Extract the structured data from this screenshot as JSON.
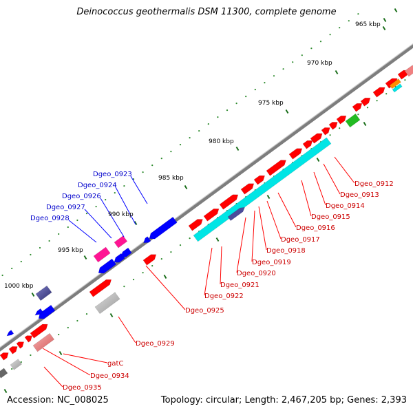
{
  "title": "Deinococcus geothermalis DSM 11300, complete genome",
  "footer": {
    "accession": "Accession: NC_008025",
    "topology": "Topology: circular; Length: 2,467,205 bp; Genes: 2,393"
  },
  "colors": {
    "backbone": "#808080",
    "tick_dots": "#2e8b2e",
    "forward_gene": "#ff0000",
    "forward_label": "#cc0000",
    "reverse_gene": "#0000ff",
    "reverse_label": "#0000cc",
    "rrna_cyan": "#00e5e5",
    "magenta": "#ff1493",
    "slate": "#4b4b9b",
    "green": "#22bb22",
    "orange": "#ff8c00",
    "grey": "#b0b0b0",
    "pink": "#f08080"
  },
  "scale_labels": [
    "965 kbp",
    "970 kbp",
    "975 kbp",
    "980 kbp",
    "985 kbp",
    "990 kbp",
    "995 kbp",
    "1000 kbp"
  ],
  "gene_labels_reverse": [
    "Dgeo_0923",
    "Dgeo_0924",
    "Dgeo_0926",
    "Dgeo_0927",
    "Dgeo_0928"
  ],
  "gene_labels_forward": [
    "Dgeo_0912",
    "Dgeo_0913",
    "Dgeo_0914",
    "Dgeo_0915",
    "Dgeo_0916",
    "Dgeo_0917",
    "Dgeo_0918",
    "Dgeo_0919",
    "Dgeo_0920",
    "Dgeo_0921",
    "Dgeo_0922",
    "Dgeo_0925",
    "Dgeo_0929",
    "gatC",
    "Dgeo_0934",
    "Dgeo_0935"
  ]
}
